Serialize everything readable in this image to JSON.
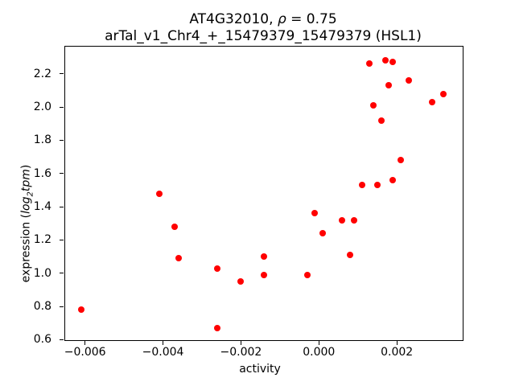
{
  "chart_data": {
    "type": "scatter",
    "title": {
      "part1": "AT4G32010, ",
      "rho": "ρ",
      "part2": " = 0.75"
    },
    "subtitle": "arTal_v1_Chr4_+_15479379_15479379 (HSL1)",
    "xlabel": "activity",
    "ylabel": {
      "prefix": "expression (",
      "log": "log",
      "sub": "2",
      "unit": "tpm",
      "suffix": ")"
    },
    "marker_color": "#ff0000",
    "axis_color": "#000000",
    "grid": "off",
    "legend": "none",
    "xlim": [
      -0.00653,
      0.00369
    ],
    "ylim": [
      0.597,
      2.368
    ],
    "x_ticks": [
      {
        "value": -0.006,
        "label": "−0.006"
      },
      {
        "value": -0.004,
        "label": "−0.004"
      },
      {
        "value": -0.002,
        "label": "−0.002"
      },
      {
        "value": 0.0,
        "label": "0.000"
      },
      {
        "value": 0.002,
        "label": "0.002"
      }
    ],
    "y_ticks": [
      {
        "value": 0.6,
        "label": "0.6"
      },
      {
        "value": 0.8,
        "label": "0.8"
      },
      {
        "value": 1.0,
        "label": "1.0"
      },
      {
        "value": 1.2,
        "label": "1.2"
      },
      {
        "value": 1.4,
        "label": "1.4"
      },
      {
        "value": 1.6,
        "label": "1.6"
      },
      {
        "value": 1.8,
        "label": "1.8"
      },
      {
        "value": 2.0,
        "label": "2.0"
      },
      {
        "value": 2.2,
        "label": "2.2"
      }
    ],
    "points": [
      [
        -0.0061,
        0.78
      ],
      [
        -0.0041,
        1.48
      ],
      [
        -0.0037,
        1.28
      ],
      [
        -0.0036,
        1.09
      ],
      [
        -0.0026,
        1.03
      ],
      [
        -0.0026,
        0.67
      ],
      [
        -0.002,
        0.95
      ],
      [
        -0.0014,
        0.99
      ],
      [
        -0.0014,
        1.1
      ],
      [
        -0.0003,
        0.99
      ],
      [
        -0.0001,
        1.36
      ],
      [
        0.0001,
        1.24
      ],
      [
        0.0006,
        1.32
      ],
      [
        0.0009,
        1.32
      ],
      [
        0.0008,
        1.11
      ],
      [
        0.0011,
        1.53
      ],
      [
        0.0015,
        1.53
      ],
      [
        0.0019,
        1.56
      ],
      [
        0.0021,
        1.68
      ],
      [
        0.0013,
        2.26
      ],
      [
        0.0017,
        2.28
      ],
      [
        0.0019,
        2.27
      ],
      [
        0.0023,
        2.16
      ],
      [
        0.0018,
        2.13
      ],
      [
        0.0032,
        2.08
      ],
      [
        0.0029,
        2.03
      ],
      [
        0.0014,
        2.01
      ],
      [
        0.0016,
        1.92
      ]
    ]
  }
}
